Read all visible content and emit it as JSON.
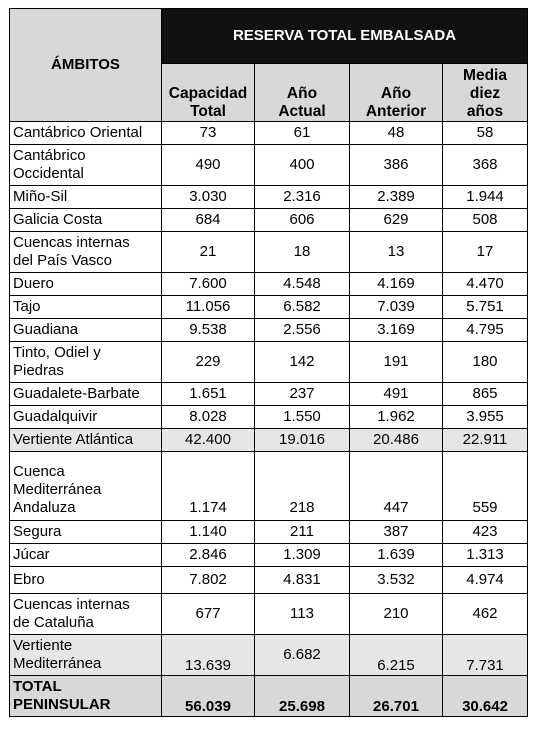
{
  "header": {
    "ambitos": "ÁMBITOS",
    "group_title": "RESERVA TOTAL EMBALSADA",
    "columns": [
      "Capacidad\nTotal",
      "Año\nActual",
      "Año\nAnterior",
      "Media\ndiez\naños"
    ]
  },
  "rows": [
    {
      "name": "Cantábrico Oriental",
      "values": [
        "73",
        "61",
        "48",
        "58"
      ]
    },
    {
      "name": "Cantábrico\nOccidental",
      "values": [
        "490",
        "400",
        "386",
        "368"
      ]
    },
    {
      "name": "Miño-Sil",
      "values": [
        "3.030",
        "2.316",
        "2.389",
        "1.944"
      ]
    },
    {
      "name": "Galicia Costa",
      "values": [
        "684",
        "606",
        "629",
        "508"
      ]
    },
    {
      "name": "Cuencas internas\ndel País Vasco",
      "values": [
        "21",
        "18",
        "13",
        "17"
      ]
    },
    {
      "name": "Duero",
      "values": [
        "7.600",
        "4.548",
        "4.169",
        "4.470"
      ]
    },
    {
      "name": "Tajo",
      "values": [
        "11.056",
        "6.582",
        "7.039",
        "5.751"
      ]
    },
    {
      "name": "Guadiana",
      "values": [
        "9.538",
        "2.556",
        "3.169",
        "4.795"
      ]
    },
    {
      "name": "Tinto, Odiel y\nPiedras",
      "values": [
        "229",
        "142",
        "191",
        "180"
      ]
    },
    {
      "name": "Guadalete-Barbate",
      "values": [
        "1.651",
        "237",
        "491",
        "865"
      ]
    },
    {
      "name": "Guadalquivir",
      "values": [
        "8.028",
        "1.550",
        "1.962",
        "3.955"
      ]
    },
    {
      "name": "Vertiente Atlántica",
      "values": [
        "42.400",
        "19.016",
        "20.486",
        "22.911"
      ]
    },
    {
      "name": "Cuenca\nMediterránea\nAndaluza",
      "values": [
        "1.174",
        "218",
        "447",
        "559"
      ]
    },
    {
      "name": "Segura",
      "values": [
        "1.140",
        "211",
        "387",
        "423"
      ]
    },
    {
      "name": "Júcar",
      "values": [
        "2.846",
        "1.309",
        "1.639",
        "1.313"
      ]
    },
    {
      "name": "Ebro",
      "values": [
        "7.802",
        "4.831",
        "3.532",
        "4.974"
      ]
    },
    {
      "name": "Cuencas internas\nde Cataluña",
      "values": [
        "677",
        "113",
        "210",
        "462"
      ]
    },
    {
      "name": "Vertiente\nMediterránea",
      "values": [
        "13.639",
        "6.682",
        "6.215",
        "7.731"
      ]
    },
    {
      "name": "TOTAL\nPENINSULAR",
      "values": [
        "56.039",
        "25.698",
        "26.701",
        "30.642"
      ]
    }
  ]
}
